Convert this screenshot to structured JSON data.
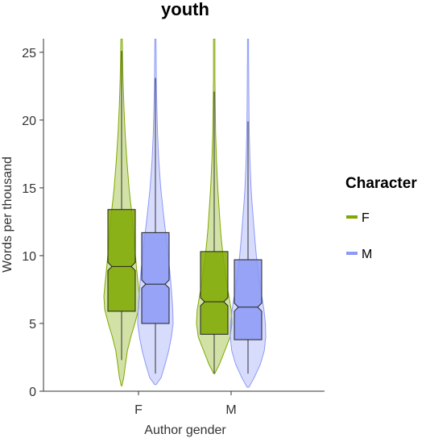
{
  "chart_data": {
    "type": "violin-boxplot",
    "title": "youth",
    "xlabel": "Author gender",
    "ylabel": "Words per thousand",
    "ylim": [
      0,
      26
    ],
    "yticks": [
      0,
      5,
      10,
      15,
      20,
      25
    ],
    "categories": [
      "F",
      "M"
    ],
    "legend": {
      "title": "Character",
      "placement": "right"
    },
    "series": [
      {
        "name": "F",
        "color": "#7FA800",
        "groups": [
          {
            "category": "F",
            "box": {
              "whisker_low": 2.3,
              "q1": 5.9,
              "median": 9.2,
              "q3": 13.4,
              "whisker_high": 25.1,
              "notch_low": 8.9,
              "notch_high": 9.5
            },
            "violin": {
              "y": [
                0.4,
                1,
                2,
                3,
                4,
                5,
                6,
                7,
                8,
                9,
                10,
                11,
                12,
                13,
                14,
                15,
                17,
                19,
                21,
                23,
                25,
                26
              ],
              "w": [
                0.02,
                0.12,
                0.22,
                0.33,
                0.52,
                0.75,
                0.95,
                1.0,
                0.93,
                0.85,
                0.78,
                0.72,
                0.66,
                0.59,
                0.5,
                0.42,
                0.3,
                0.2,
                0.13,
                0.08,
                0.05,
                0.04
              ]
            }
          },
          {
            "category": "M",
            "box": {
              "whisker_low": 1.3,
              "q1": 4.2,
              "median": 6.6,
              "q3": 10.3,
              "whisker_high": 22.1,
              "notch_low": 6.3,
              "notch_high": 6.9
            },
            "violin": {
              "y": [
                1.3,
                2,
                3,
                4,
                5,
                6,
                7,
                8,
                9,
                10,
                11,
                12,
                13,
                14,
                15,
                17,
                19,
                21,
                23,
                25,
                26
              ],
              "w": [
                0.03,
                0.3,
                0.6,
                0.9,
                1.0,
                0.96,
                0.83,
                0.7,
                0.6,
                0.5,
                0.42,
                0.35,
                0.3,
                0.25,
                0.2,
                0.13,
                0.08,
                0.06,
                0.04,
                0.04,
                0.04
              ]
            }
          }
        ]
      },
      {
        "name": "M",
        "color": "#8C99F5",
        "groups": [
          {
            "category": "F",
            "box": {
              "whisker_low": 1.3,
              "q1": 5.0,
              "median": 7.9,
              "q3": 11.7,
              "whisker_high": 23.1,
              "notch_low": 7.6,
              "notch_high": 8.2
            },
            "violin": {
              "y": [
                0.5,
                1,
                2,
                3,
                4,
                5,
                6,
                7,
                8,
                9,
                10,
                11,
                12,
                13,
                14,
                15,
                17,
                19,
                21,
                23,
                25,
                26
              ],
              "w": [
                0.05,
                0.32,
                0.55,
                0.75,
                0.9,
                1.0,
                0.98,
                0.93,
                0.87,
                0.8,
                0.72,
                0.64,
                0.55,
                0.46,
                0.38,
                0.3,
                0.19,
                0.12,
                0.08,
                0.05,
                0.04,
                0.03
              ]
            }
          },
          {
            "category": "M",
            "box": {
              "whisker_low": 1.3,
              "q1": 3.8,
              "median": 6.2,
              "q3": 9.7,
              "whisker_high": 19.9,
              "notch_low": 5.9,
              "notch_high": 6.5
            },
            "violin": {
              "y": [
                0.3,
                1,
                2,
                3,
                4,
                5,
                6,
                7,
                8,
                9,
                10,
                11,
                12,
                13,
                14,
                15,
                17,
                19,
                21,
                23,
                25,
                26
              ],
              "w": [
                0.05,
                0.35,
                0.7,
                0.92,
                1.0,
                0.98,
                0.9,
                0.78,
                0.66,
                0.56,
                0.47,
                0.4,
                0.34,
                0.28,
                0.22,
                0.17,
                0.11,
                0.07,
                0.05,
                0.04,
                0.03,
                0.03
              ]
            }
          }
        ]
      }
    ]
  }
}
